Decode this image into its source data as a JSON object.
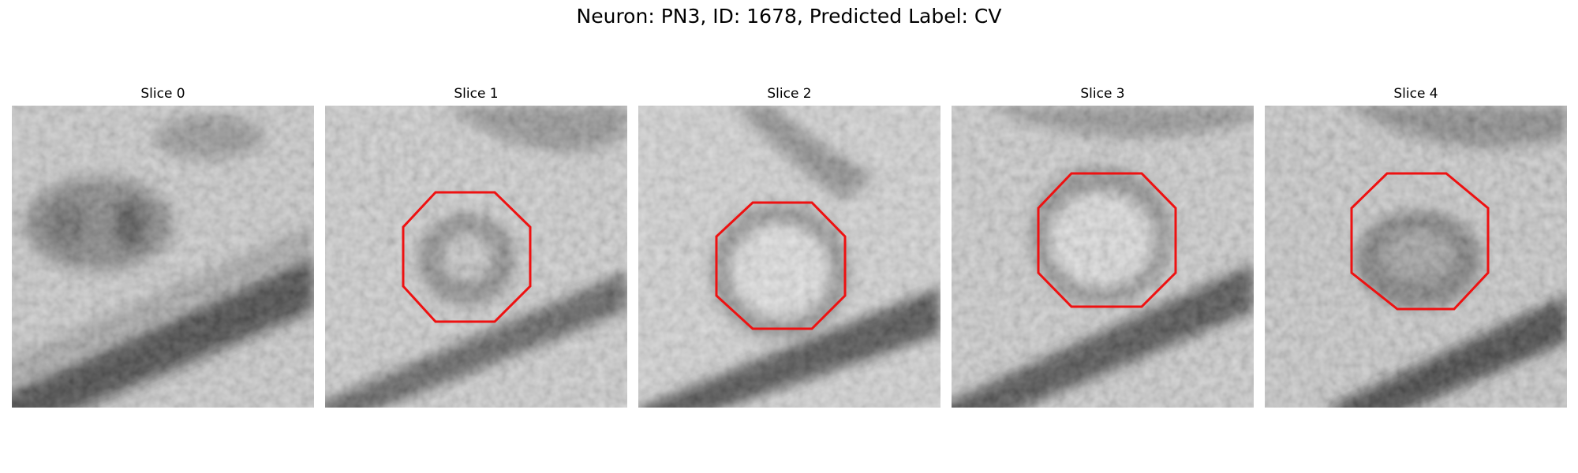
{
  "figure": {
    "title": "Neuron: PN3, ID: 1678, Predicted Label: CV",
    "outline_color": "#ee1111"
  },
  "panels": [
    {
      "title": "Slice 0",
      "has_outline": false
    },
    {
      "title": "Slice 1",
      "has_outline": true
    },
    {
      "title": "Slice 2",
      "has_outline": true
    },
    {
      "title": "Slice 3",
      "has_outline": true
    },
    {
      "title": "Slice 4",
      "has_outline": true
    }
  ]
}
